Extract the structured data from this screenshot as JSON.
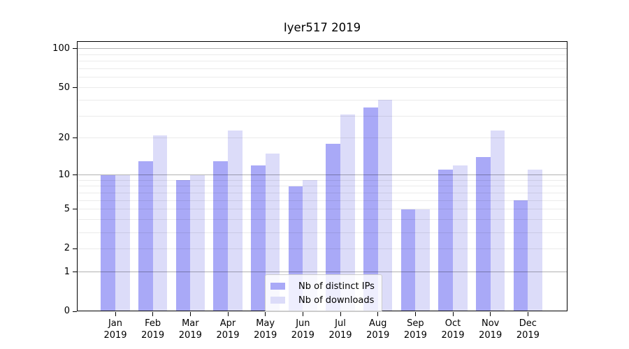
{
  "title": "Iyer517 2019",
  "chart_data": {
    "type": "bar",
    "title": "Iyer517 2019",
    "categories": [
      "Jan",
      "Feb",
      "Mar",
      "Apr",
      "May",
      "Jun",
      "Jul",
      "Aug",
      "Sep",
      "Oct",
      "Nov",
      "Dec"
    ],
    "x_tick_year": "2019",
    "series": [
      {
        "name": "Nb of distinct IPs",
        "color": "#a9a9f7",
        "values": [
          10,
          13,
          9,
          13,
          12,
          8,
          18,
          35,
          5,
          11,
          14,
          6
        ]
      },
      {
        "name": "Nb of downloads",
        "color": "#dcdcf9",
        "values": [
          10,
          21,
          10,
          23,
          15,
          9,
          31,
          40,
          5,
          12,
          23,
          11
        ]
      }
    ],
    "yscale": "log1p",
    "ylim": [
      0,
      110
    ],
    "yticks": [
      0,
      1,
      2,
      5,
      10,
      20,
      50,
      100
    ],
    "major_gridlines": [
      1,
      10,
      100
    ],
    "minor_gridlines": [
      2,
      3,
      4,
      5,
      6,
      7,
      8,
      9,
      20,
      30,
      40,
      50,
      60,
      70,
      80,
      90
    ],
    "grid": true,
    "legend_position": "lower center"
  },
  "colors": {
    "major_grid": "rgba(0,0,0,0.30)",
    "minor_grid": "rgba(0,0,0,0.08)",
    "spine": "#000000",
    "legend_border": "#cccccc"
  }
}
